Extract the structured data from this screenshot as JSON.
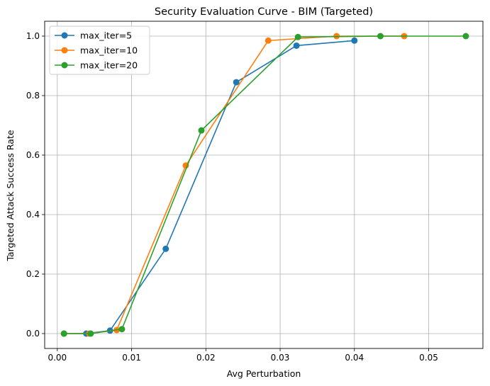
{
  "chart_data": {
    "type": "line",
    "title": "Security Evaluation Curve - BIM (Targeted)",
    "xlabel": "Avg Perturbation",
    "ylabel": "Targeted Attack Success Rate",
    "xlim": [
      -0.0017,
      0.0573
    ],
    "ylim": [
      -0.05,
      1.05
    ],
    "xticks": [
      0.0,
      0.01,
      0.02,
      0.03,
      0.04,
      0.05
    ],
    "xtick_labels": [
      "0.00",
      "0.01",
      "0.02",
      "0.03",
      "0.04",
      "0.05"
    ],
    "yticks": [
      0.0,
      0.2,
      0.4,
      0.6,
      0.8,
      1.0
    ],
    "ytick_labels": [
      "0.0",
      "0.2",
      "0.4",
      "0.6",
      "0.8",
      "1.0"
    ],
    "grid": true,
    "legend_position": "top-left",
    "series": [
      {
        "name": "max_iter=5",
        "color": "#1f77b4",
        "x": [
          0.0009,
          0.0039,
          0.0071,
          0.0146,
          0.0241,
          0.0322,
          0.04
        ],
        "y": [
          0.0,
          0.0,
          0.01,
          0.285,
          0.845,
          0.968,
          0.985
        ]
      },
      {
        "name": "max_iter=10",
        "color": "#ff7f0e",
        "x": [
          0.0009,
          0.0043,
          0.008,
          0.0173,
          0.0284,
          0.0376,
          0.0467
        ],
        "y": [
          0.0,
          0.0,
          0.012,
          0.565,
          0.985,
          1.0,
          1.0
        ]
      },
      {
        "name": "max_iter=20",
        "color": "#2ca02c",
        "x": [
          0.0009,
          0.0045,
          0.0087,
          0.0194,
          0.0324,
          0.0435,
          0.055
        ],
        "y": [
          0.0,
          0.0,
          0.015,
          0.683,
          0.997,
          1.0,
          1.0
        ]
      }
    ]
  }
}
